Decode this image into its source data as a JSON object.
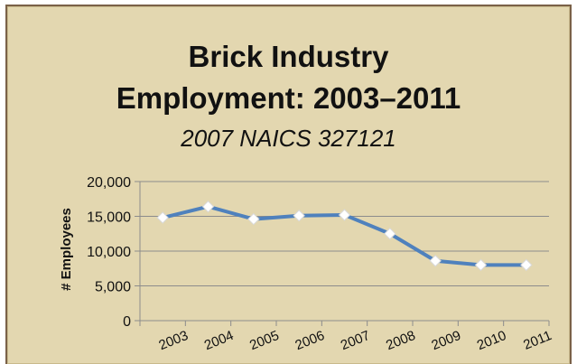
{
  "chart_data": {
    "type": "line",
    "title_line1": "Brick Industry",
    "title_line2": "Employment: 2003–2011",
    "subtitle": "2007 NAICS 327121",
    "ylabel": "# Employees",
    "xlabel": "",
    "categories": [
      "2003",
      "2004",
      "2005",
      "2006",
      "2007",
      "2008",
      "2009",
      "2010",
      "2011"
    ],
    "y_tick_labels": [
      "0",
      "5,000",
      "10,000",
      "15,000",
      "20,000"
    ],
    "y_ticks": [
      0,
      5000,
      10000,
      15000,
      20000
    ],
    "ylim": [
      0,
      20000
    ],
    "series": [
      {
        "values": [
          14800,
          16400,
          14600,
          15100,
          15200,
          12500,
          8600,
          8000,
          8000
        ]
      }
    ],
    "grid": true,
    "legend": "none",
    "colors": {
      "line": "#4f81bd",
      "marker_fill": "#ffffff",
      "background": "#e3d7b0",
      "border": "#7a6148",
      "grid": "#8c8c8c"
    }
  }
}
